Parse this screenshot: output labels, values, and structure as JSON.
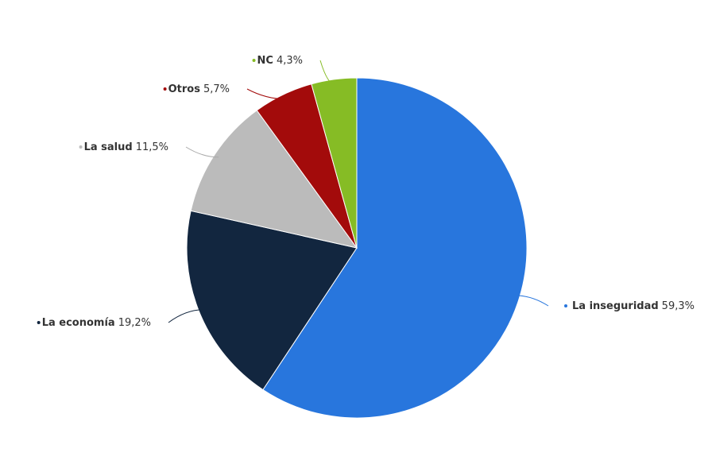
{
  "chart_data": {
    "type": "pie",
    "categories": [
      "La inseguridad",
      "La economía",
      "La salud",
      "Otros",
      "NC"
    ],
    "values": [
      59.3,
      19.2,
      11.5,
      5.7,
      4.3
    ],
    "value_labels": [
      "59,3%",
      "19,2%",
      "11,5%",
      "5,7%",
      "4,3%"
    ],
    "colors": [
      "#2876dd",
      "#12263f",
      "#bbbbbb",
      "#a30b0b",
      "#86bc25"
    ]
  }
}
